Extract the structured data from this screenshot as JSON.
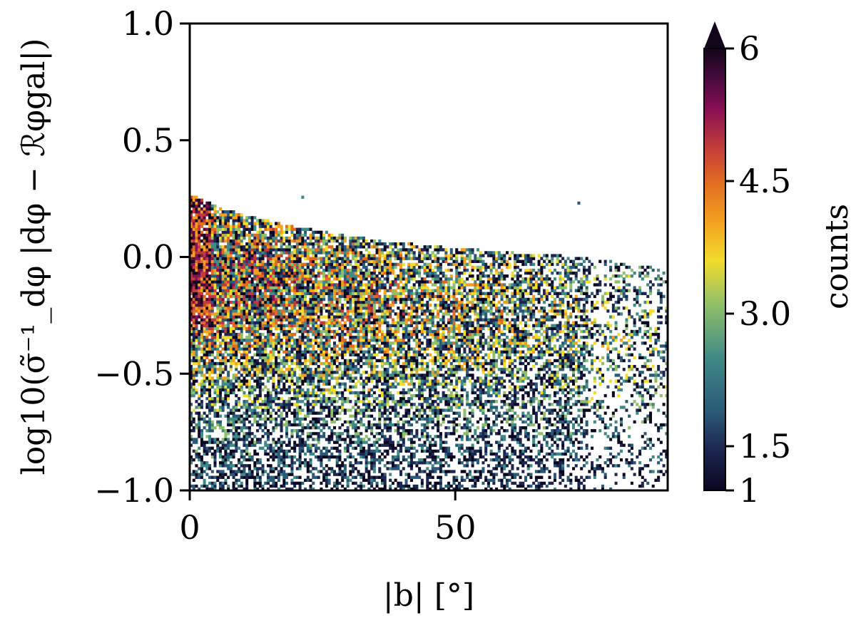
{
  "chart_data": {
    "type": "heatmap",
    "title": "",
    "xlabel": "|b| [°]",
    "ylabel": "log10(σ̃⁻¹_dφ |dφ − ℛφgal|)",
    "xlim": [
      0,
      90
    ],
    "ylim": [
      -1.0,
      1.0
    ],
    "xticks": [
      0,
      50
    ],
    "xtick_labels": [
      "0",
      "50"
    ],
    "yticks": [
      1.0,
      0.5,
      0.0,
      -0.5,
      -1.0
    ],
    "ytick_labels": [
      "1.0",
      "0.5",
      "0.0",
      "−0.5",
      "−1.0"
    ],
    "colorbar": {
      "label": "counts",
      "range": [
        1,
        6
      ],
      "ticks": [
        1,
        1.5,
        3.0,
        4.5,
        6
      ],
      "tick_labels": [
        "1",
        "1.5",
        "3.0",
        "4.5",
        "6"
      ],
      "extend": "max",
      "colormap_stops": [
        "#0a0620",
        "#1c2550",
        "#2a5a78",
        "#3f8a86",
        "#8fbf6a",
        "#f2dc2c",
        "#f3a020",
        "#e06a22",
        "#c03a3a",
        "#8a1054",
        "#4a0a3e",
        "#12051c"
      ]
    },
    "density_upper_envelope": [
      [
        0,
        0.27
      ],
      [
        5,
        0.22
      ],
      [
        10,
        0.18
      ],
      [
        20,
        0.13
      ],
      [
        30,
        0.09
      ],
      [
        40,
        0.06
      ],
      [
        50,
        0.04
      ],
      [
        60,
        0.02
      ],
      [
        70,
        0.01
      ],
      [
        80,
        -0.02
      ],
      [
        90,
        -0.05
      ]
    ],
    "density_peak": [
      [
        0,
        -0.1
      ],
      [
        15,
        -0.12
      ],
      [
        30,
        -0.18
      ],
      [
        45,
        -0.22
      ],
      [
        60,
        -0.25
      ],
      [
        75,
        -0.3
      ],
      [
        90,
        -0.35
      ]
    ],
    "grid": false
  }
}
